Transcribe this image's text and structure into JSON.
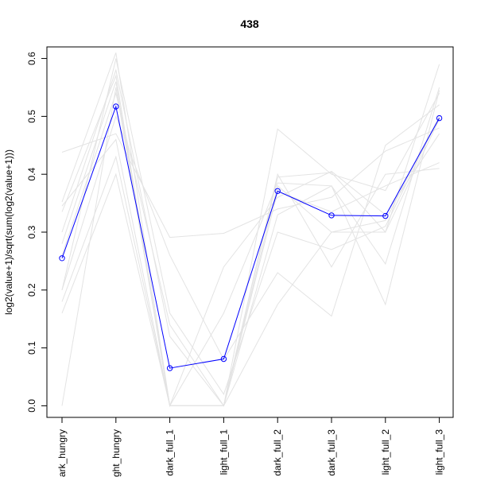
{
  "chart_data": {
    "type": "line",
    "title": "438",
    "xlabel": "",
    "ylabel": "log2(value+1)/sqrt(sum(log2(value+1)))",
    "categories": [
      "dark_hungry",
      "light_hungry",
      "dark_full_1",
      "light_full_1",
      "dark_full_2",
      "dark_full_3",
      "light_full_2",
      "light_full_3"
    ],
    "ylim": [
      -0.02,
      0.62
    ],
    "yticks": [
      0.0,
      0.1,
      0.2,
      0.3,
      0.4,
      0.5,
      0.6
    ],
    "ytick_labels": [
      "0.0",
      "0.1",
      "0.2",
      "0.3",
      "0.4",
      "0.5",
      "0.6"
    ],
    "grid": false,
    "highlight_series": {
      "color": "#0000ff",
      "values": [
        0.255,
        0.517,
        0.065,
        0.081,
        0.371,
        0.329,
        0.328,
        0.497
      ]
    },
    "background_series_color": "#e3e3e3",
    "background_series": [
      [
        0.438,
        0.47,
        0.291,
        0.298,
        0.34,
        0.36,
        0.44,
        0.48
      ],
      [
        0.352,
        0.61,
        0.0,
        0.0,
        0.478,
        0.4,
        0.372,
        0.54
      ],
      [
        0.335,
        0.57,
        0.0,
        0.0,
        0.395,
        0.403,
        0.3,
        0.59
      ],
      [
        0.3,
        0.58,
        0.12,
        0.0,
        0.38,
        0.3,
        0.32,
        0.5
      ],
      [
        0.28,
        0.56,
        0.0,
        0.24,
        0.36,
        0.405,
        0.33,
        0.47
      ],
      [
        0.26,
        0.54,
        0.14,
        0.0,
        0.4,
        0.24,
        0.4,
        0.41
      ],
      [
        0.2,
        0.5,
        0.26,
        0.08,
        0.23,
        0.155,
        0.45,
        0.52
      ],
      [
        0.18,
        0.43,
        0.0,
        0.0,
        0.175,
        0.3,
        0.3,
        0.495
      ],
      [
        0.16,
        0.4,
        0.0,
        0.0,
        0.33,
        0.38,
        0.175,
        0.545
      ],
      [
        0.0,
        0.55,
        0.0,
        0.0,
        0.37,
        0.335,
        0.38,
        0.42
      ],
      [
        0.345,
        0.46,
        0.0,
        0.16,
        0.385,
        0.38,
        0.245,
        0.55
      ],
      [
        0.2,
        0.6,
        0.16,
        0.02,
        0.3,
        0.27,
        0.31,
        0.5
      ]
    ]
  }
}
